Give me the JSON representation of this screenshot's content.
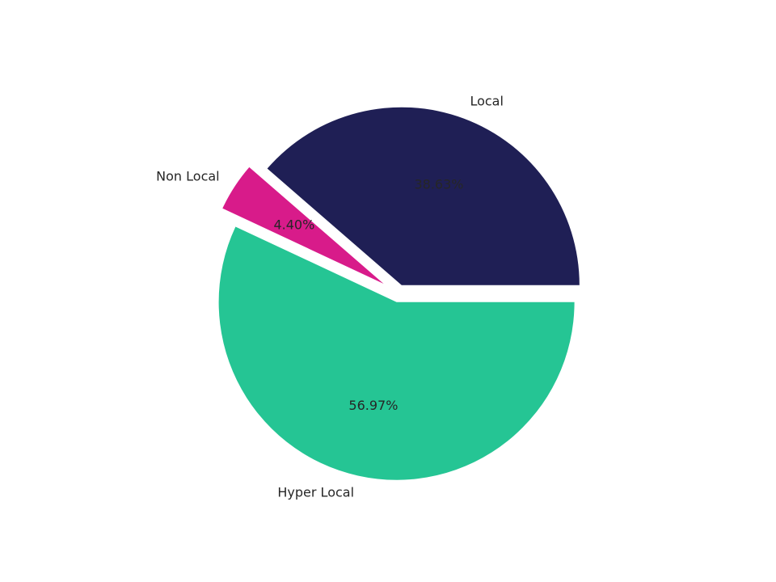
{
  "chart_data": {
    "type": "pie",
    "categories": [
      "Local",
      "Non Local",
      "Hyper Local"
    ],
    "values": [
      38.63,
      4.4,
      56.97
    ],
    "value_labels": [
      "38.63%",
      "4.40%",
      "56.97%"
    ],
    "colors": [
      "#1f1f55",
      "#d81b8a",
      "#25c594"
    ]
  }
}
